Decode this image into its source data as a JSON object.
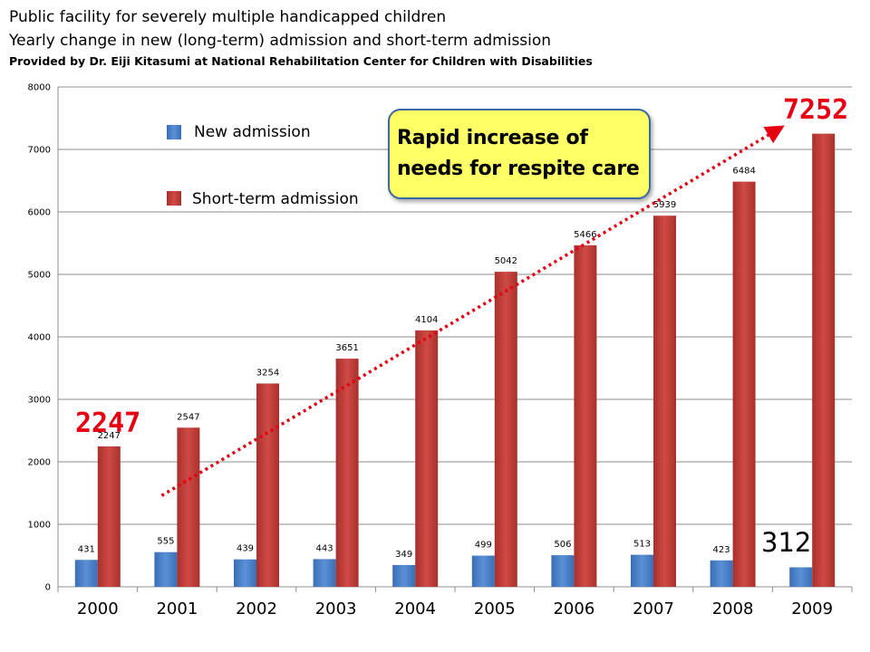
{
  "header": {
    "title_line1": "Public facility for severely multiple handicapped children",
    "title_line2": "Yearly change in new (long-term) admission and short-term admission",
    "credit": "Provided by Dr. Eiji Kitasumi at National Rehabilitation Center for Children with Disabilities"
  },
  "callout": {
    "line1": "Rapid increase of",
    "line2": "needs for respite care"
  },
  "colors": {
    "new_admission": "#4a7ebf",
    "short_term": "#c0403c",
    "highlight": "#e60012",
    "callout_fill": "#ffff66",
    "callout_border": "#3b6aa0"
  },
  "chart_data": {
    "type": "bar",
    "categories": [
      "2000",
      "2001",
      "2002",
      "2003",
      "2004",
      "2005",
      "2006",
      "2007",
      "2008",
      "2009"
    ],
    "series": [
      {
        "name": "New admission",
        "values": [
          431,
          555,
          439,
          443,
          349,
          499,
          506,
          513,
          423,
          312
        ]
      },
      {
        "name": "Short-term admission",
        "values": [
          2247,
          2547,
          3254,
          3651,
          4104,
          5042,
          5466,
          5939,
          6484,
          7252
        ]
      }
    ],
    "ylim": [
      0,
      8000
    ],
    "yticks": [
      0,
      1000,
      2000,
      3000,
      4000,
      5000,
      6000,
      7000,
      8000
    ],
    "grid": true,
    "legend": "top-left",
    "highlights": {
      "first": "2247",
      "last": "7252",
      "last_new": "312"
    },
    "trend": {
      "from": "2001",
      "to": "2009",
      "style": "dotted-arrow"
    }
  }
}
